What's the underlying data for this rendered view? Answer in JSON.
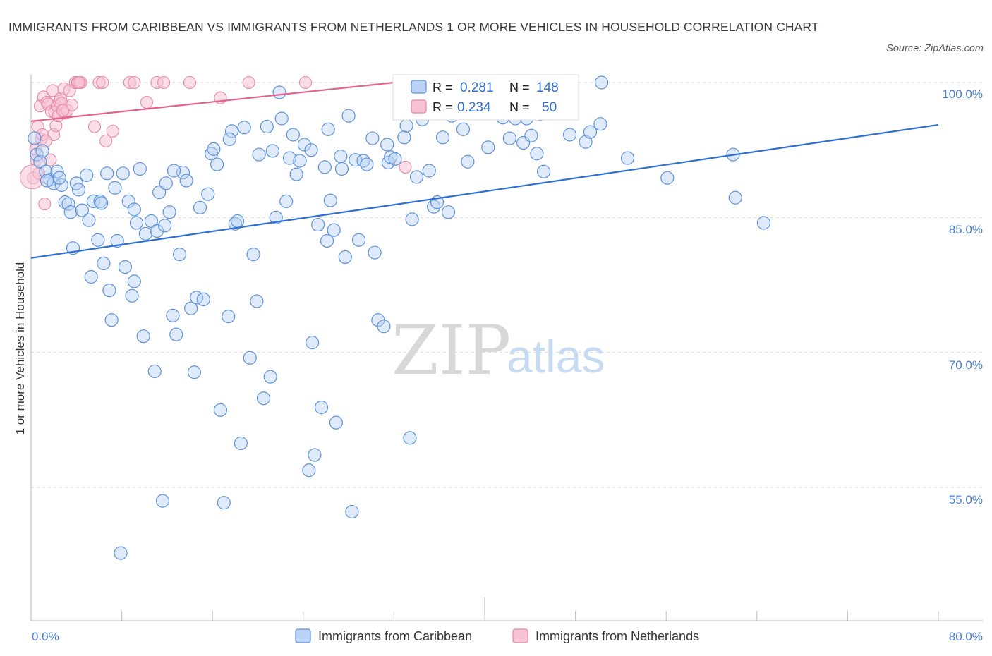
{
  "title": "IMMIGRANTS FROM CARIBBEAN VS IMMIGRANTS FROM NETHERLANDS 1 OR MORE VEHICLES IN HOUSEHOLD CORRELATION CHART",
  "source": "Source: ZipAtlas.com",
  "watermark": {
    "zip": "ZIP",
    "atlas": "atlas"
  },
  "colors": {
    "caribbean_fill": "#b9d2f5",
    "caribbean_stroke": "#5e91db",
    "caribbean_line": "#2f6fd0",
    "netherlands_fill": "#f8c3d3",
    "netherlands_stroke": "#e58aa8",
    "netherlands_line": "#e0648f",
    "tick_text": "#4a7fd0",
    "grid": "#d9d9d9"
  },
  "legend_box": {
    "rows": [
      {
        "r_label": "R =",
        "r_value": "0.281",
        "n_label": "N =",
        "n_value": "148"
      },
      {
        "r_label": "R =",
        "r_value": "0.234",
        "n_label": "N =",
        "n_value": "50"
      }
    ]
  },
  "bottom_legend": [
    "Immigrants from Caribbean",
    "Immigrants from Netherlands"
  ],
  "chart_data": {
    "type": "scatter",
    "title": "IMMIGRANTS FROM CARIBBEAN VS IMMIGRANTS FROM NETHERLANDS 1 OR MORE VEHICLES IN HOUSEHOLD CORRELATION CHART",
    "xlabel": "",
    "ylabel": "1 or more Vehicles in Household",
    "xlim": [
      0,
      80
    ],
    "ylim": [
      40,
      100
    ],
    "x_tick_labels": [
      "0.0%",
      "80.0%"
    ],
    "y_ticks": [
      55,
      70,
      85,
      100
    ],
    "y_tick_labels": [
      "55.0%",
      "70.0%",
      "85.0%",
      "100.0%"
    ],
    "grid": true,
    "legend_position": "bottom",
    "series": [
      {
        "name": "Immigrants from Caribbean",
        "R": 0.281,
        "N": 148,
        "trend": {
          "x": [
            0,
            80
          ],
          "y": [
            80.5,
            95.3
          ]
        },
        "points": [
          [
            0.3,
            93.8
          ],
          [
            0.5,
            92.0
          ],
          [
            0.8,
            91.2
          ],
          [
            1.0,
            92.4
          ],
          [
            1.3,
            90.1
          ],
          [
            1.7,
            89.2
          ],
          [
            2.0,
            88.8
          ],
          [
            2.3,
            90.1
          ],
          [
            2.7,
            88.6
          ],
          [
            3.0,
            86.7
          ],
          [
            3.3,
            86.5
          ],
          [
            3.5,
            85.6
          ],
          [
            3.7,
            81.6
          ],
          [
            4.0,
            88.8
          ],
          [
            4.2,
            88.1
          ],
          [
            4.5,
            85.8
          ],
          [
            4.9,
            89.7
          ],
          [
            5.1,
            84.7
          ],
          [
            5.3,
            78.4
          ],
          [
            5.5,
            86.8
          ],
          [
            5.9,
            82.5
          ],
          [
            6.1,
            86.8
          ],
          [
            6.4,
            79.9
          ],
          [
            6.7,
            89.9
          ],
          [
            6.9,
            76.9
          ],
          [
            7.1,
            73.6
          ],
          [
            7.4,
            88.3
          ],
          [
            7.6,
            82.4
          ],
          [
            7.9,
            47.7
          ],
          [
            8.1,
            89.9
          ],
          [
            8.3,
            79.5
          ],
          [
            8.6,
            86.8
          ],
          [
            8.9,
            76.3
          ],
          [
            9.1,
            77.9
          ],
          [
            9.3,
            84.4
          ],
          [
            9.6,
            90.4
          ],
          [
            9.9,
            71.8
          ],
          [
            10.1,
            83.2
          ],
          [
            10.6,
            84.6
          ],
          [
            10.9,
            67.9
          ],
          [
            11.1,
            83.5
          ],
          [
            11.3,
            87.8
          ],
          [
            11.6,
            53.5
          ],
          [
            11.9,
            88.8
          ],
          [
            12.2,
            85.6
          ],
          [
            12.5,
            74.1
          ],
          [
            12.8,
            72.0
          ],
          [
            13.1,
            80.9
          ],
          [
            13.4,
            90.0
          ],
          [
            13.7,
            89.1
          ],
          [
            14.1,
            74.9
          ],
          [
            14.4,
            67.8
          ],
          [
            14.6,
            76.1
          ],
          [
            14.9,
            86.1
          ],
          [
            15.2,
            75.9
          ],
          [
            15.6,
            87.6
          ],
          [
            15.9,
            92.1
          ],
          [
            16.1,
            92.6
          ],
          [
            16.4,
            90.9
          ],
          [
            16.7,
            63.6
          ],
          [
            17.0,
            53.3
          ],
          [
            17.4,
            74.0
          ],
          [
            17.7,
            94.6
          ],
          [
            18.0,
            84.3
          ],
          [
            18.2,
            84.6
          ],
          [
            18.5,
            59.9
          ],
          [
            18.8,
            95.0
          ],
          [
            19.3,
            69.4
          ],
          [
            19.6,
            80.9
          ],
          [
            19.9,
            75.7
          ],
          [
            20.1,
            92.0
          ],
          [
            20.5,
            64.9
          ],
          [
            20.8,
            95.1
          ],
          [
            21.1,
            67.3
          ],
          [
            21.3,
            92.4
          ],
          [
            21.9,
            98.9
          ],
          [
            22.1,
            96.0
          ],
          [
            22.5,
            86.8
          ],
          [
            22.8,
            91.6
          ],
          [
            23.1,
            94.2
          ],
          [
            23.4,
            89.8
          ],
          [
            23.7,
            91.3
          ],
          [
            24.1,
            93.1
          ],
          [
            24.5,
            56.9
          ],
          [
            24.8,
            71.1
          ],
          [
            25.0,
            58.6
          ],
          [
            25.3,
            84.2
          ],
          [
            25.6,
            63.9
          ],
          [
            25.9,
            90.6
          ],
          [
            26.1,
            82.4
          ],
          [
            26.4,
            86.9
          ],
          [
            26.7,
            83.6
          ],
          [
            26.9,
            62.2
          ],
          [
            27.4,
            90.4
          ],
          [
            27.7,
            80.6
          ],
          [
            28.0,
            96.3
          ],
          [
            28.3,
            52.3
          ],
          [
            28.6,
            91.4
          ],
          [
            28.9,
            82.5
          ],
          [
            29.3,
            91.3
          ],
          [
            29.6,
            90.9
          ],
          [
            30.1,
            93.8
          ],
          [
            30.3,
            81.1
          ],
          [
            30.6,
            73.6
          ],
          [
            31.1,
            72.9
          ],
          [
            31.5,
            91.1
          ],
          [
            31.7,
            91.7
          ],
          [
            32.1,
            91.5
          ],
          [
            32.9,
            93.9
          ],
          [
            33.1,
            95.2
          ],
          [
            33.4,
            60.5
          ],
          [
            33.6,
            84.8
          ],
          [
            34.0,
            89.5
          ],
          [
            34.5,
            95.9
          ],
          [
            35.1,
            90.2
          ],
          [
            35.5,
            86.2
          ],
          [
            35.8,
            86.7
          ],
          [
            36.4,
            97.1
          ],
          [
            36.8,
            85.6
          ],
          [
            37.1,
            96.3
          ],
          [
            37.7,
            98.3
          ],
          [
            38.1,
            94.8
          ],
          [
            38.5,
            91.2
          ],
          [
            39.6,
            98.3
          ],
          [
            40.3,
            92.8
          ],
          [
            41.6,
            96.1
          ],
          [
            42.2,
            93.8
          ],
          [
            42.7,
            96.0
          ],
          [
            43.4,
            93.3
          ],
          [
            43.7,
            96.0
          ],
          [
            44.1,
            94.1
          ],
          [
            44.9,
            96.5
          ],
          [
            45.2,
            90.1
          ],
          [
            46.1,
            100.0
          ],
          [
            47.5,
            94.2
          ],
          [
            48.9,
            93.4
          ],
          [
            49.3,
            94.5
          ],
          [
            50.2,
            95.4
          ],
          [
            50.3,
            100.0
          ],
          [
            52.6,
            91.6
          ],
          [
            56.1,
            89.4
          ],
          [
            61.9,
            92.0
          ],
          [
            62.1,
            87.2
          ],
          [
            64.6,
            84.4
          ],
          [
            1.4,
            89.1
          ],
          [
            2.5,
            89.4
          ],
          [
            6.2,
            86.6
          ],
          [
            11.8,
            84.1
          ],
          [
            17.5,
            93.7
          ],
          [
            26.2,
            94.8
          ],
          [
            31.4,
            93.1
          ],
          [
            44.6,
            92.1
          ],
          [
            21.6,
            85.0
          ],
          [
            36.3,
            93.9
          ],
          [
            24.7,
            92.5
          ],
          [
            12.6,
            90.2
          ],
          [
            9.1,
            85.9
          ],
          [
            27.3,
            91.8
          ]
        ]
      },
      {
        "name": "Immigrants from Netherlands",
        "R": 0.234,
        "N": 50,
        "trend": {
          "x": [
            0,
            32
          ],
          "y": [
            95.7,
            100.0
          ]
        },
        "points": [
          [
            0.2,
            89.4
          ],
          [
            0.4,
            92.6
          ],
          [
            0.5,
            91.4
          ],
          [
            0.6,
            95.1
          ],
          [
            0.7,
            89.9
          ],
          [
            0.8,
            97.4
          ],
          [
            0.9,
            93.7
          ],
          [
            1.0,
            94.2
          ],
          [
            1.1,
            98.4
          ],
          [
            1.2,
            86.5
          ],
          [
            1.4,
            97.8
          ],
          [
            1.5,
            97.6
          ],
          [
            1.7,
            91.4
          ],
          [
            1.8,
            96.8
          ],
          [
            1.9,
            99.1
          ],
          [
            2.0,
            94.2
          ],
          [
            2.1,
            96.7
          ],
          [
            2.2,
            95.2
          ],
          [
            2.3,
            97.4
          ],
          [
            2.4,
            96.3
          ],
          [
            2.5,
            97.9
          ],
          [
            2.6,
            98.2
          ],
          [
            2.7,
            97.7
          ],
          [
            2.9,
            99.3
          ],
          [
            3.0,
            96.6
          ],
          [
            3.2,
            96.9
          ],
          [
            3.4,
            99.1
          ],
          [
            3.6,
            97.5
          ],
          [
            3.9,
            100.0
          ],
          [
            4.1,
            100.0
          ],
          [
            4.3,
            100.0
          ],
          [
            4.4,
            100.0
          ],
          [
            5.6,
            95.1
          ],
          [
            6.0,
            100.0
          ],
          [
            6.3,
            100.0
          ],
          [
            6.6,
            93.5
          ],
          [
            7.2,
            94.6
          ],
          [
            8.7,
            100.0
          ],
          [
            9.1,
            100.0
          ],
          [
            10.2,
            97.8
          ],
          [
            11.1,
            100.0
          ],
          [
            11.7,
            100.0
          ],
          [
            14.0,
            100.0
          ],
          [
            16.7,
            98.3
          ],
          [
            19.2,
            100.0
          ],
          [
            24.2,
            100.0
          ],
          [
            33.0,
            90.6
          ],
          [
            2.8,
            96.9
          ],
          [
            1.3,
            93.5
          ],
          [
            4.2,
            100.0
          ]
        ]
      }
    ]
  }
}
